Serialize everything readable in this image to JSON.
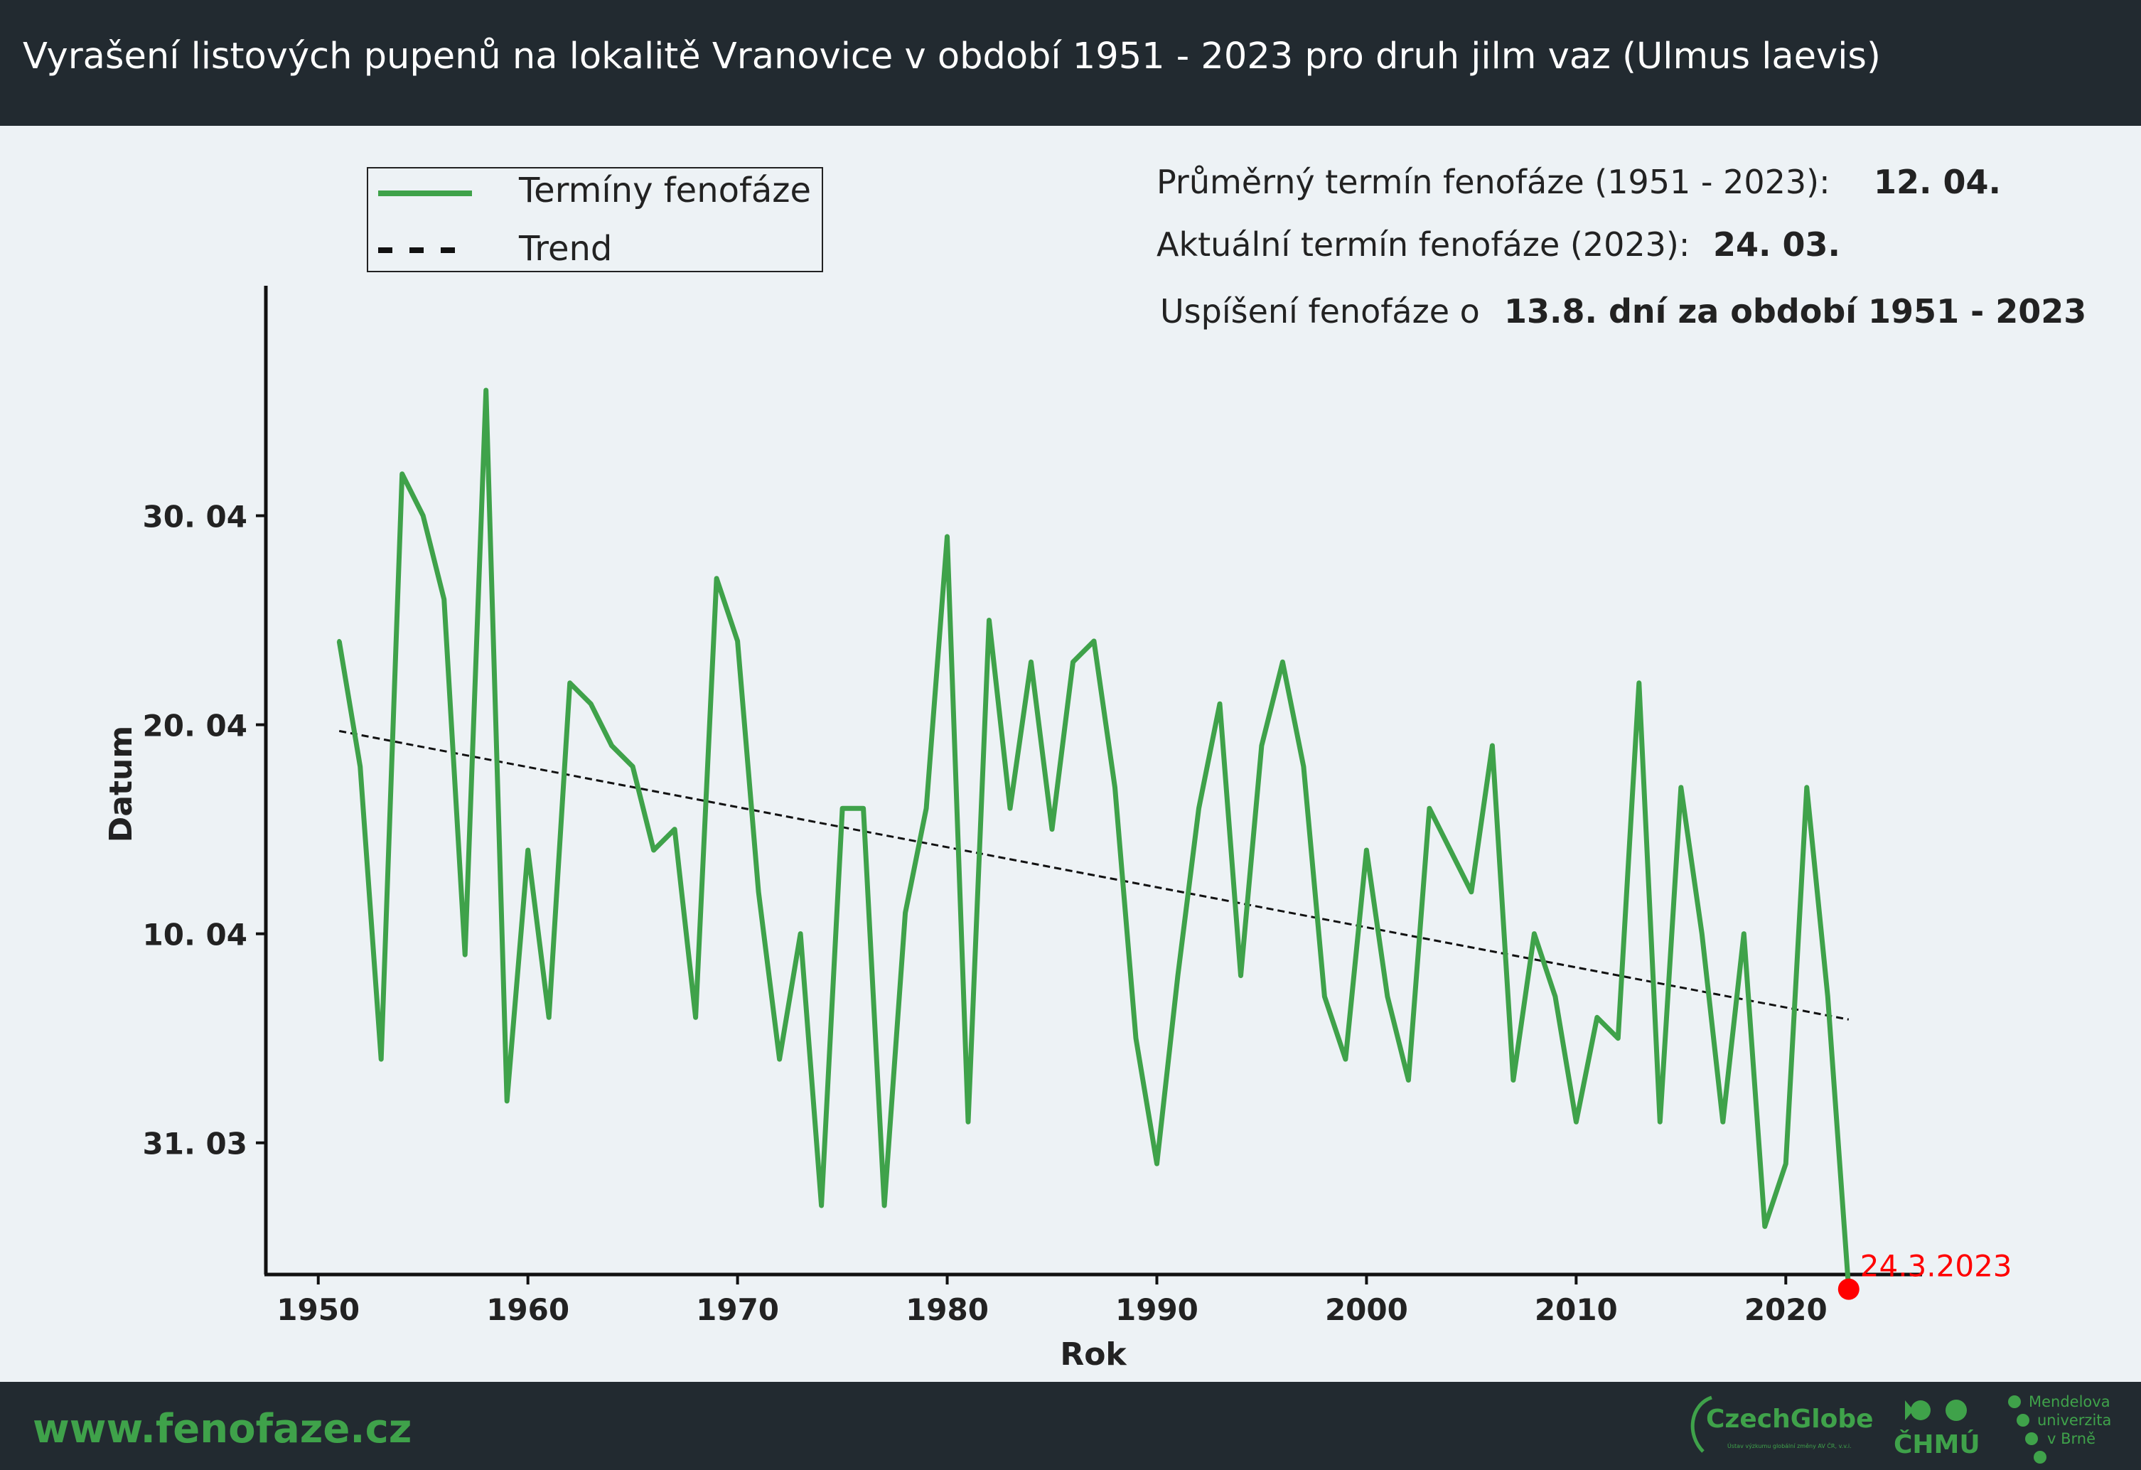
{
  "header": {
    "title": "Vyrašení listových pupenů na lokalitě Vranovice v období 1951 - 2023 pro druh jilm vaz (Ulmus laevis)"
  },
  "legend": {
    "series_label": "Termíny fenofáze",
    "trend_label": "Trend"
  },
  "info": {
    "avg_label": "Průměrný termín fenofáze (1951 - 2023):",
    "avg_value": "12. 04.",
    "current_label": "Aktuální termín fenofáze (2023):",
    "current_value": "24. 03.",
    "shift_label": "Uspíšení fenofáze o",
    "shift_value": "13.8. dní za období 1951 - 2023"
  },
  "footer": {
    "url": "www.fenofaze.cz",
    "logo_czechglobe": "CzechGlobe",
    "logo_czechglobe_sub": "Ústav výzkumu globální změny AV ČR, v.v.i.",
    "logo_chmu": "ČHMÚ",
    "logo_mendel_1": "Mendelova",
    "logo_mendel_2": "univerzita",
    "logo_mendel_3": "v Brně"
  },
  "colors": {
    "series": "#3fa24a",
    "trend": "#111111",
    "highlight": "#ff0000",
    "bar": "#222a30",
    "plot_bg": "#edf2f5"
  },
  "chart_data": {
    "type": "line",
    "xlabel": "Rok",
    "ylabel": "Datum",
    "xlim": [
      1947.5,
      2026.5
    ],
    "ylim": [
      83.7,
      131.0
    ],
    "xticks": [
      1950,
      1960,
      1970,
      1980,
      1990,
      2000,
      2010,
      2020
    ],
    "yticks": [
      {
        "value": 90,
        "label": "31. 03"
      },
      {
        "value": 100,
        "label": "10. 04"
      },
      {
        "value": 110,
        "label": "20. 04"
      },
      {
        "value": 120,
        "label": "30. 04"
      }
    ],
    "y_units": "day of year (rendered as date label)",
    "series": [
      {
        "name": "Termíny fenofáze",
        "x": [
          1951,
          1952,
          1953,
          1954,
          1955,
          1956,
          1957,
          1958,
          1959,
          1960,
          1961,
          1962,
          1963,
          1964,
          1965,
          1966,
          1967,
          1968,
          1969,
          1970,
          1971,
          1972,
          1973,
          1974,
          1975,
          1976,
          1977,
          1978,
          1979,
          1980,
          1981,
          1982,
          1983,
          1984,
          1985,
          1986,
          1987,
          1988,
          1989,
          1990,
          1991,
          1992,
          1993,
          1994,
          1995,
          1996,
          1997,
          1998,
          1999,
          2000,
          2001,
          2002,
          2003,
          2004,
          2005,
          2006,
          2007,
          2008,
          2009,
          2010,
          2011,
          2012,
          2013,
          2014,
          2015,
          2016,
          2017,
          2018,
          2019,
          2020,
          2021,
          2022,
          2023
        ],
        "y": [
          114,
          108,
          94,
          122,
          120,
          116,
          99,
          126,
          92,
          104,
          96,
          112,
          111,
          109,
          108,
          104,
          105,
          96,
          117,
          114,
          102,
          94,
          100,
          87,
          106,
          106,
          87,
          101,
          106,
          119,
          91,
          115,
          106,
          113,
          105,
          113,
          114,
          107,
          95,
          89,
          98,
          106,
          111,
          98,
          109,
          113,
          108,
          97,
          94,
          104,
          97,
          93,
          106,
          104,
          102,
          109,
          93,
          100,
          97,
          91,
          96,
          95,
          112,
          91,
          107,
          100,
          91,
          100,
          86,
          89,
          107,
          97,
          83
        ]
      },
      {
        "name": "Trend",
        "x": [
          1951,
          2023
        ],
        "y": [
          109.7,
          95.9
        ]
      }
    ],
    "annotation": {
      "x": 2023,
      "y": 83,
      "text": "24.3.2023"
    }
  }
}
